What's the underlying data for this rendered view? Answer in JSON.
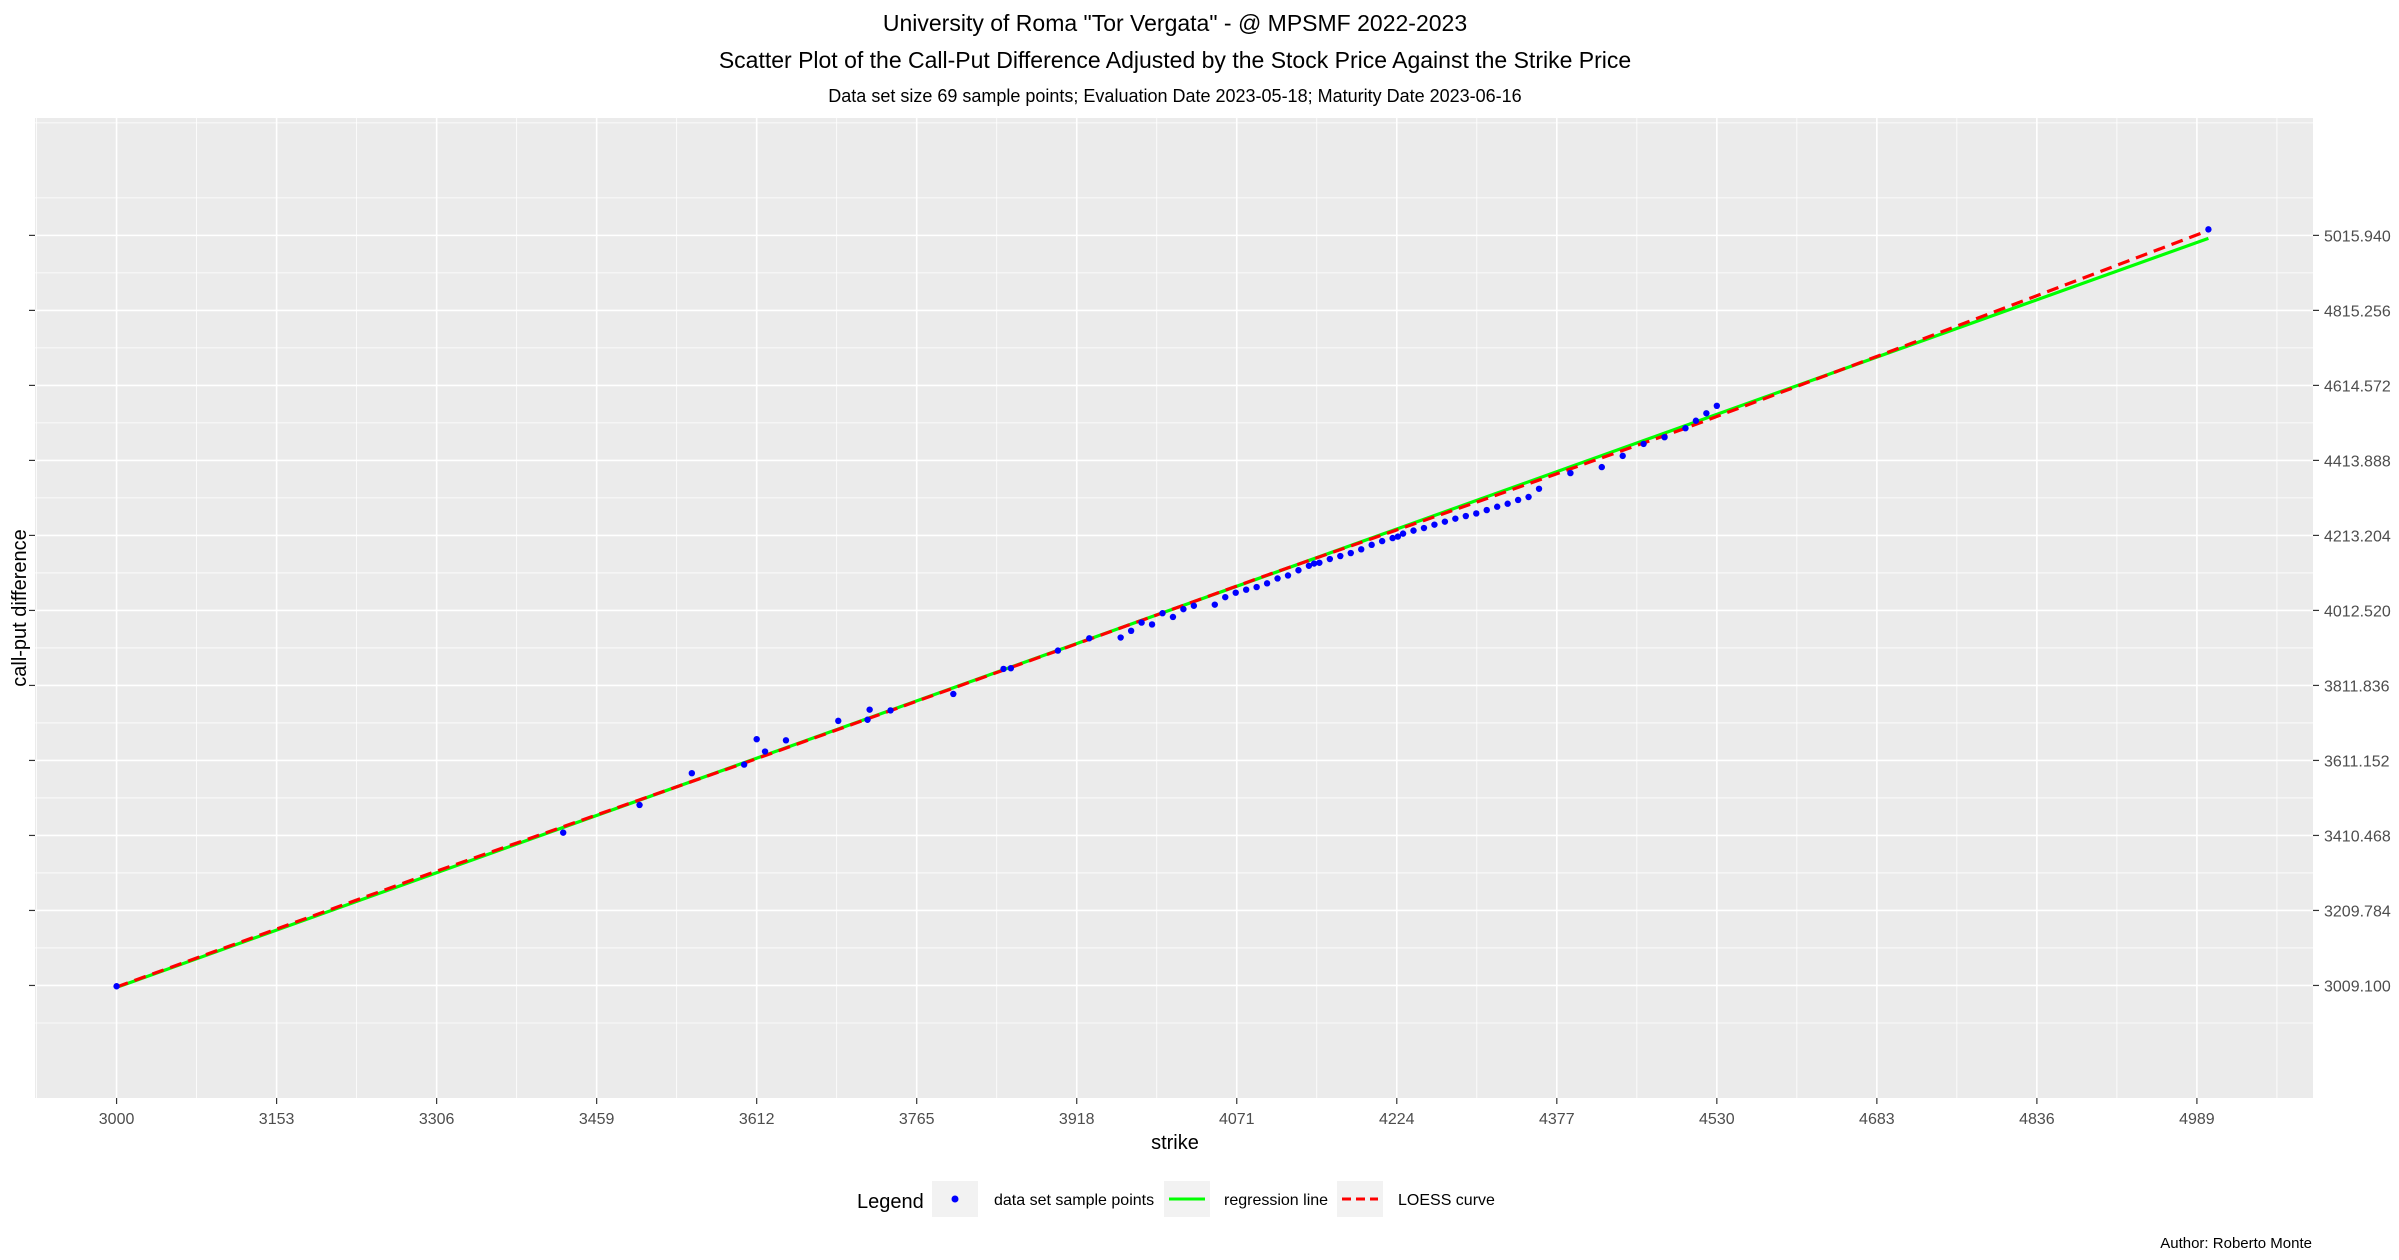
{
  "chart_data": {
    "type": "scatter",
    "title": "University of Roma \"Tor Vergata\" - @ MPSMF 2022-2023",
    "subtitle": "Scatter Plot of the Call-Put Difference Adjusted by the Stock Price Against the Strike Price",
    "info": "Data set size  69  sample points;    Evaluation Date 2023-05-18;   Maturity Date 2023-06-16",
    "xlabel": "strike",
    "ylabel": "call-put difference",
    "xlim": [
      2922,
      5100
    ],
    "ylim": [
      2708,
      5330
    ],
    "x_ticks": [
      "3000",
      "3153",
      "3306",
      "3459",
      "3612",
      "3765",
      "3918",
      "4071",
      "4224",
      "4377",
      "4530",
      "4683",
      "4836",
      "4989"
    ],
    "y_ticks": [
      "3009.100",
      "3209.784",
      "3410.468",
      "3611.152",
      "3811.836",
      "4012.520",
      "4213.204",
      "4413.888",
      "4614.572",
      "4815.256",
      "5015.940"
    ],
    "y_axis_side": "right",
    "grid": true,
    "legend_position": "bottom",
    "legend_title": "Legend",
    "series": [
      {
        "name": "data set sample points",
        "kind": "points",
        "color": "#0000ff",
        "x": [
          3000,
          3427,
          3500,
          3550,
          3600,
          3612,
          3620,
          3640,
          3690,
          3718,
          3720,
          3740,
          3800,
          3848,
          3855,
          3900,
          3930,
          3960,
          3970,
          3980,
          3990,
          4000,
          4010,
          4020,
          4030,
          4050,
          4060,
          4070,
          4080,
          4090,
          4100,
          4110,
          4120,
          4130,
          4140,
          4145,
          4150,
          4160,
          4170,
          4180,
          4190,
          4200,
          4210,
          4220,
          4225,
          4230,
          4240,
          4250,
          4260,
          4270,
          4280,
          4290,
          4300,
          4310,
          4320,
          4330,
          4340,
          4350,
          4360,
          4390,
          4420,
          4440,
          4460,
          4480,
          4500,
          4510,
          4520,
          4530,
          5000
        ],
        "y": [
          3007,
          3418,
          3492,
          3577,
          3600,
          3668,
          3635,
          3665,
          3717,
          3720,
          3747,
          3745,
          3789,
          3856,
          3858,
          3905,
          3938,
          3940,
          3958,
          3980,
          3975,
          4005,
          3995,
          4016,
          4025,
          4028,
          4048,
          4060,
          4068,
          4075,
          4085,
          4098,
          4106,
          4120,
          4132,
          4138,
          4140,
          4150,
          4158,
          4166,
          4176,
          4188,
          4198,
          4206,
          4210,
          4218,
          4226,
          4233,
          4242,
          4250,
          4258,
          4265,
          4272,
          4281,
          4290,
          4298,
          4308,
          4316,
          4338,
          4380,
          4396,
          4426,
          4458,
          4476,
          4500,
          4520,
          4540,
          4560,
          5032
        ]
      },
      {
        "name": "regression line",
        "kind": "line",
        "color": "#00ff00",
        "x": [
          3000,
          5000
        ],
        "y": [
          3004,
          5008
        ]
      },
      {
        "name": "LOESS curve",
        "kind": "dashed",
        "color": "#ff0000",
        "x": [
          3000,
          3300,
          3600,
          3900,
          4100,
          4300,
          4500,
          4700,
          5000
        ],
        "y": [
          3005,
          3309,
          3604,
          3905,
          4107,
          4302,
          4500,
          4710,
          5029
        ]
      }
    ]
  },
  "caption": "Author: Roberto Monte"
}
